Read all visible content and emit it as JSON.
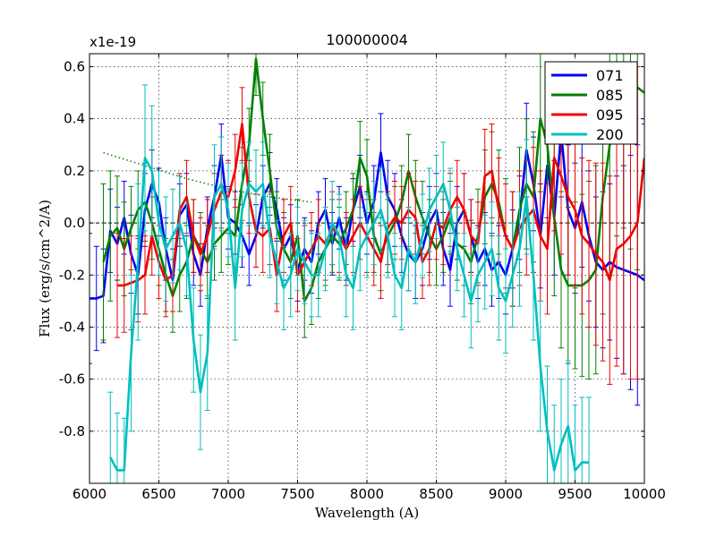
{
  "chart_data": {
    "type": "line",
    "title": "100000004",
    "xlabel": "Wavelength (A)",
    "ylabel": "Flux (erg/s/cm^2/A)",
    "offset_label": "x1e-19",
    "xlim": [
      6000,
      10000
    ],
    "ylim": [
      -1.0,
      0.65
    ],
    "grid": true,
    "legend_position": "top-right",
    "x_ticks": [
      6000,
      6500,
      7000,
      7500,
      8000,
      8500,
      9000,
      9500,
      10000
    ],
    "x_tick_labels": [
      "6000",
      "6500",
      "7000",
      "7500",
      "8000",
      "8500",
      "9000",
      "9500",
      "10000"
    ],
    "y_ticks": [
      0.6,
      0.4,
      0.2,
      0.0,
      -0.2,
      -0.4,
      -0.6,
      -0.8
    ],
    "y_tick_labels": [
      "0.6",
      "0.4",
      "0.2",
      "0.0",
      "-0.2",
      "-0.4",
      "-0.6",
      "-0.8"
    ],
    "series": [
      {
        "name": "071",
        "color": "#0000ee",
        "x": [
          6000,
          6050,
          6100,
          6150,
          6200,
          6250,
          6300,
          6350,
          6400,
          6450,
          6500,
          6550,
          6600,
          6650,
          6700,
          6750,
          6800,
          6850,
          6900,
          6950,
          7000,
          7050,
          7100,
          7150,
          7200,
          7250,
          7300,
          7350,
          7400,
          7450,
          7500,
          7550,
          7600,
          7650,
          7700,
          7750,
          7800,
          7850,
          7900,
          7950,
          8000,
          8050,
          8100,
          8150,
          8200,
          8250,
          8300,
          8350,
          8400,
          8450,
          8500,
          8550,
          8600,
          8650,
          8700,
          8750,
          8800,
          8850,
          8900,
          8950,
          9000,
          9050,
          9100,
          9150,
          9200,
          9250,
          9300,
          9350,
          9400,
          9450,
          9500,
          9550,
          9600,
          9650,
          9700,
          9750,
          9800,
          9850,
          9900,
          9950,
          10000
        ],
        "y": [
          -0.29,
          -0.29,
          -0.28,
          -0.03,
          -0.08,
          0.02,
          -0.12,
          -0.2,
          0.05,
          0.15,
          0.08,
          -0.1,
          -0.22,
          0.03,
          0.07,
          -0.12,
          -0.2,
          -0.02,
          0.1,
          0.26,
          0.02,
          0.0,
          -0.05,
          -0.12,
          -0.05,
          0.1,
          0.15,
          0.05,
          -0.1,
          -0.05,
          -0.18,
          -0.1,
          -0.15,
          0.0,
          0.05,
          -0.08,
          0.02,
          -0.1,
          0.05,
          0.14,
          0.0,
          0.08,
          0.27,
          0.1,
          0.05,
          -0.05,
          -0.12,
          -0.15,
          -0.1,
          0.0,
          0.05,
          -0.1,
          -0.18,
          0.0,
          0.05,
          -0.05,
          -0.15,
          -0.1,
          -0.18,
          -0.15,
          -0.2,
          -0.1,
          0.02,
          0.28,
          0.15,
          -0.05,
          0.22,
          0.02,
          0.35,
          0.05,
          -0.02,
          0.08,
          -0.05,
          -0.15,
          -0.18,
          -0.15,
          -0.17,
          -0.18,
          -0.19,
          -0.2,
          -0.22
        ],
        "err": [
          0.25,
          0.2,
          0.18,
          0.16,
          0.14,
          0.14,
          0.15,
          0.15,
          0.14,
          0.13,
          0.13,
          0.12,
          0.12,
          0.12,
          0.12,
          0.12,
          0.12,
          0.12,
          0.12,
          0.12,
          0.12,
          0.12,
          0.12,
          0.12,
          0.12,
          0.12,
          0.12,
          0.12,
          0.12,
          0.12,
          0.12,
          0.12,
          0.12,
          0.12,
          0.12,
          0.12,
          0.12,
          0.12,
          0.12,
          0.12,
          0.12,
          0.14,
          0.15,
          0.14,
          0.14,
          0.14,
          0.14,
          0.14,
          0.14,
          0.14,
          0.14,
          0.14,
          0.14,
          0.14,
          0.14,
          0.14,
          0.14,
          0.14,
          0.14,
          0.14,
          0.15,
          0.15,
          0.16,
          0.18,
          0.18,
          0.2,
          0.2,
          0.22,
          0.25,
          0.25,
          0.25,
          0.25,
          0.25,
          0.25,
          0.3,
          0.3,
          0.35,
          0.4,
          0.45,
          0.5,
          0.6
        ]
      },
      {
        "name": "085",
        "color": "#008000",
        "x": [
          6100,
          6150,
          6200,
          6250,
          6300,
          6350,
          6400,
          6450,
          6500,
          6550,
          6600,
          6650,
          6700,
          6750,
          6800,
          6850,
          6900,
          6950,
          7000,
          7050,
          7100,
          7150,
          7200,
          7250,
          7300,
          7350,
          7400,
          7450,
          7500,
          7550,
          7600,
          7650,
          7700,
          7750,
          7800,
          7850,
          7900,
          7950,
          8000,
          8050,
          8100,
          8150,
          8200,
          8250,
          8300,
          8350,
          8400,
          8450,
          8500,
          8550,
          8600,
          8650,
          8700,
          8750,
          8800,
          8850,
          8900,
          8950,
          9000,
          9050,
          9100,
          9150,
          9200,
          9250,
          9300,
          9350,
          9400,
          9450,
          9500,
          9550,
          9600,
          9650,
          9700,
          9750,
          9800,
          9850,
          9900,
          9950,
          10000
        ],
        "y": [
          -0.15,
          -0.05,
          -0.02,
          -0.1,
          -0.02,
          0.05,
          0.08,
          0.0,
          -0.1,
          -0.2,
          -0.28,
          -0.2,
          -0.15,
          -0.05,
          -0.1,
          -0.15,
          -0.08,
          -0.05,
          -0.02,
          -0.05,
          0.15,
          0.3,
          0.63,
          0.4,
          0.2,
          -0.02,
          -0.1,
          -0.15,
          -0.05,
          -0.3,
          -0.25,
          -0.15,
          -0.1,
          -0.05,
          -0.08,
          -0.02,
          0.05,
          0.25,
          0.18,
          -0.05,
          -0.12,
          -0.05,
          0.0,
          0.08,
          0.2,
          0.1,
          0.02,
          -0.05,
          -0.1,
          -0.05,
          0.02,
          -0.08,
          -0.1,
          -0.15,
          -0.05,
          0.1,
          0.15,
          0.08,
          -0.05,
          -0.1,
          0.05,
          0.15,
          0.1,
          0.4,
          0.3,
          0.02,
          -0.18,
          -0.24,
          -0.24,
          -0.24,
          -0.22,
          -0.18,
          0.1,
          0.3,
          0.5,
          0.58,
          0.55,
          0.52,
          0.5
        ],
        "err": [
          0.3,
          0.25,
          0.2,
          0.18,
          0.16,
          0.15,
          0.15,
          0.14,
          0.14,
          0.14,
          0.14,
          0.14,
          0.14,
          0.14,
          0.14,
          0.14,
          0.14,
          0.14,
          0.14,
          0.14,
          0.14,
          0.14,
          0.14,
          0.14,
          0.14,
          0.14,
          0.14,
          0.14,
          0.14,
          0.14,
          0.14,
          0.14,
          0.14,
          0.14,
          0.14,
          0.14,
          0.14,
          0.14,
          0.14,
          0.14,
          0.14,
          0.14,
          0.14,
          0.14,
          0.14,
          0.14,
          0.14,
          0.14,
          0.14,
          0.14,
          0.14,
          0.14,
          0.14,
          0.16,
          0.18,
          0.18,
          0.2,
          0.2,
          0.22,
          0.22,
          0.24,
          0.25,
          0.25,
          0.28,
          0.3,
          0.3,
          0.3,
          0.3,
          0.32,
          0.35,
          0.38,
          0.4,
          0.45,
          0.5,
          0.55,
          0.6,
          0.65,
          0.7,
          0.7
        ]
      },
      {
        "name": "095",
        "color": "#ee0000",
        "x": [
          6200,
          6250,
          6300,
          6350,
          6400,
          6450,
          6500,
          6550,
          6600,
          6650,
          6700,
          6750,
          6800,
          6850,
          6900,
          6950,
          7000,
          7050,
          7100,
          7150,
          7200,
          7250,
          7300,
          7350,
          7400,
          7450,
          7500,
          7550,
          7600,
          7650,
          7700,
          7750,
          7800,
          7850,
          7900,
          7950,
          8000,
          8050,
          8100,
          8150,
          8200,
          8250,
          8300,
          8350,
          8400,
          8450,
          8500,
          8550,
          8600,
          8650,
          8700,
          8750,
          8800,
          8850,
          8900,
          8950,
          9000,
          9050,
          9100,
          9150,
          9200,
          9250,
          9300,
          9350,
          9400,
          9450,
          9500,
          9550,
          9600,
          9650,
          9700,
          9750,
          9800,
          9850,
          9900,
          9950,
          10000
        ],
        "y": [
          -0.24,
          -0.24,
          -0.23,
          -0.22,
          -0.2,
          -0.05,
          -0.15,
          -0.22,
          -0.2,
          0.05,
          0.1,
          -0.05,
          -0.12,
          -0.05,
          0.05,
          0.12,
          0.1,
          0.2,
          0.38,
          0.1,
          -0.03,
          -0.05,
          -0.02,
          -0.2,
          -0.05,
          0.0,
          -0.2,
          -0.15,
          -0.1,
          -0.05,
          -0.08,
          -0.02,
          -0.05,
          -0.1,
          -0.05,
          0.0,
          -0.05,
          -0.1,
          -0.15,
          -0.02,
          0.02,
          0.0,
          0.05,
          0.02,
          -0.15,
          -0.1,
          0.0,
          -0.02,
          0.05,
          0.1,
          0.05,
          -0.05,
          -0.08,
          0.18,
          0.2,
          0.05,
          -0.05,
          -0.1,
          -0.02,
          0.02,
          0.05,
          -0.05,
          -0.1,
          0.25,
          0.18,
          0.1,
          0.05,
          -0.05,
          -0.08,
          -0.12,
          -0.15,
          -0.22,
          -0.1,
          -0.08,
          -0.05,
          0.0,
          0.25
        ],
        "err": [
          0.2,
          0.18,
          0.18,
          0.16,
          0.15,
          0.15,
          0.14,
          0.14,
          0.14,
          0.14,
          0.14,
          0.14,
          0.14,
          0.14,
          0.14,
          0.14,
          0.14,
          0.14,
          0.14,
          0.14,
          0.14,
          0.14,
          0.14,
          0.14,
          0.14,
          0.14,
          0.14,
          0.14,
          0.14,
          0.14,
          0.14,
          0.14,
          0.14,
          0.14,
          0.14,
          0.14,
          0.14,
          0.14,
          0.14,
          0.14,
          0.14,
          0.14,
          0.14,
          0.14,
          0.14,
          0.14,
          0.14,
          0.14,
          0.14,
          0.14,
          0.14,
          0.14,
          0.16,
          0.18,
          0.18,
          0.2,
          0.2,
          0.22,
          0.22,
          0.22,
          0.24,
          0.25,
          0.25,
          0.28,
          0.3,
          0.3,
          0.3,
          0.3,
          0.32,
          0.35,
          0.38,
          0.4,
          0.45,
          0.5,
          0.55,
          0.6,
          0.65
        ]
      },
      {
        "name": "200",
        "color": "#00bfbf",
        "x": [
          6150,
          6200,
          6250,
          6300,
          6350,
          6400,
          6450,
          6500,
          6550,
          6600,
          6650,
          6700,
          6750,
          6800,
          6850,
          6900,
          6950,
          7000,
          7050,
          7100,
          7150,
          7200,
          7250,
          7300,
          7350,
          7400,
          7450,
          7500,
          7550,
          7600,
          7650,
          7700,
          7750,
          7800,
          7850,
          7900,
          7950,
          8000,
          8050,
          8100,
          8150,
          8200,
          8250,
          8300,
          8350,
          8400,
          8450,
          8500,
          8550,
          8600,
          8650,
          8700,
          8750,
          8800,
          8850,
          8900,
          8950,
          9000,
          9050,
          9100,
          9150,
          9200,
          9250,
          9300,
          9350,
          9400,
          9450,
          9500,
          9550,
          9600
        ],
        "y": [
          -0.9,
          -0.95,
          -0.95,
          -0.5,
          -0.15,
          0.25,
          0.2,
          0.0,
          -0.1,
          -0.05,
          0.0,
          -0.1,
          -0.45,
          -0.65,
          -0.5,
          0.1,
          0.15,
          0.05,
          -0.25,
          0.05,
          0.15,
          0.12,
          0.15,
          -0.05,
          -0.15,
          -0.25,
          -0.2,
          -0.1,
          -0.15,
          -0.2,
          -0.2,
          -0.1,
          0.0,
          -0.05,
          -0.2,
          -0.25,
          -0.1,
          -0.05,
          0.0,
          0.05,
          -0.05,
          -0.2,
          -0.25,
          -0.1,
          -0.15,
          -0.05,
          0.05,
          0.1,
          0.15,
          0.05,
          -0.1,
          -0.2,
          -0.3,
          -0.2,
          -0.15,
          -0.1,
          -0.25,
          -0.3,
          -0.2,
          -0.1,
          0.1,
          -0.2,
          -0.55,
          -0.8,
          -0.95,
          -0.85,
          -0.78,
          -0.95,
          -0.92,
          -0.92
        ],
        "err": [
          0.25,
          0.22,
          0.2,
          0.3,
          0.3,
          0.28,
          0.25,
          0.2,
          0.2,
          0.18,
          0.18,
          0.18,
          0.2,
          0.22,
          0.22,
          0.2,
          0.18,
          0.18,
          0.2,
          0.18,
          0.16,
          0.16,
          0.16,
          0.16,
          0.16,
          0.16,
          0.16,
          0.16,
          0.16,
          0.16,
          0.16,
          0.16,
          0.16,
          0.16,
          0.16,
          0.16,
          0.16,
          0.16,
          0.16,
          0.16,
          0.16,
          0.16,
          0.16,
          0.16,
          0.16,
          0.16,
          0.16,
          0.16,
          0.16,
          0.16,
          0.16,
          0.16,
          0.18,
          0.18,
          0.18,
          0.18,
          0.2,
          0.2,
          0.2,
          0.22,
          0.22,
          0.25,
          0.25,
          0.25,
          0.25,
          0.25,
          0.25,
          0.25,
          0.25,
          0.25
        ]
      }
    ],
    "reference_line": {
      "style": "dotted",
      "color": "#008000",
      "x": [
        6100,
        6400,
        6700,
        7000,
        7300,
        7600
      ],
      "y": [
        0.27,
        0.22,
        0.17,
        0.13,
        0.1,
        0.08
      ]
    }
  }
}
